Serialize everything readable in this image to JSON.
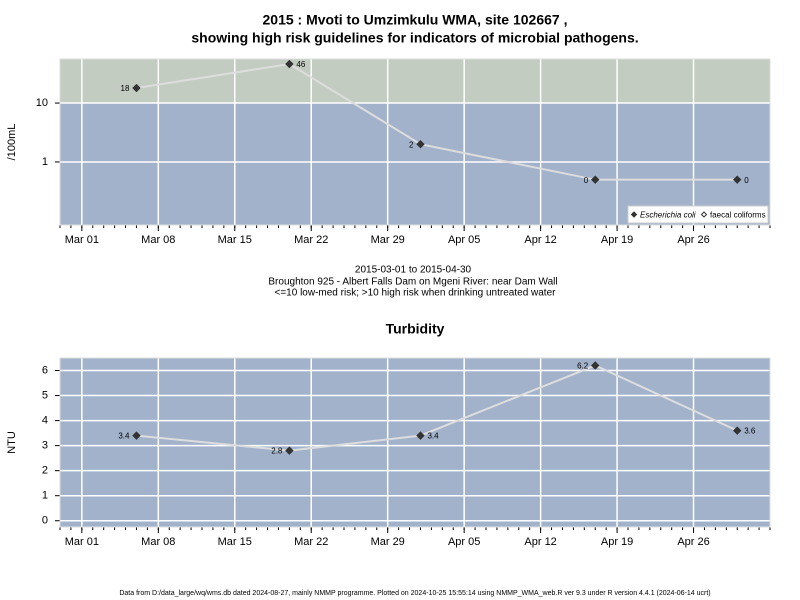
{
  "title_lines": [
    "2015 : Mvoti to Umzimkulu WMA, site 102667 ,",
    "showing high risk guidelines for indicators of microbial pathogens."
  ],
  "subtitle_lines": [
    "2015-03-01 to 2015-04-30",
    "Broughton 925 - Albert Falls Dam on Mgeni River: near Dam Wall",
    "<=10 low-med risk; >10 high risk when drinking untreated water"
  ],
  "footer": "Data from D:/data_large/wq/wms.db dated 2024-08-27, mainly NMMP programme. Plotted on 2024-10-25 15:55:14 using NMMP_WMA_web.R ver 9.3 under R version 4.4.1 (2024-06-14 ucrt)",
  "chart_data": [
    {
      "type": "line",
      "y_label": "/100mL",
      "log_y": true,
      "x": [
        "2015-03-06",
        "2015-03-20",
        "2015-04-01",
        "2015-04-17",
        "2015-04-30"
      ],
      "xlim": [
        "2015-02-27",
        "2015-05-03"
      ],
      "xticks": [
        {
          "value": "2015-03-01",
          "label": "Mar 01"
        },
        {
          "value": "2015-03-08",
          "label": "Mar 08"
        },
        {
          "value": "2015-03-15",
          "label": "Mar 15"
        },
        {
          "value": "2015-03-22",
          "label": "Mar 22"
        },
        {
          "value": "2015-03-29",
          "label": "Mar 29"
        },
        {
          "value": "2015-04-05",
          "label": "Apr 05"
        },
        {
          "value": "2015-04-12",
          "label": "Apr 12"
        },
        {
          "value": "2015-04-19",
          "label": "Apr 19"
        },
        {
          "value": "2015-04-26",
          "label": "Apr 26"
        }
      ],
      "ylim": [
        0.085,
        56
      ],
      "yticks": [
        1,
        10
      ],
      "guideline": 10,
      "band_colors": [
        "#a2b2cb",
        "#c2ccc0"
      ],
      "grid": true,
      "legend": "bottom-right",
      "series": [
        {
          "name": "Escherichia coli",
          "color": "#333333",
          "line_color": "#dddddd",
          "marker": "filled-diamond",
          "values": [
            18,
            46,
            2,
            0.5,
            0.5
          ],
          "value_labels": [
            "18",
            "46",
            "2",
            "0",
            "0"
          ]
        },
        {
          "name": "faecal coliforms",
          "color": "#333333",
          "marker": "open-diamond",
          "values": [
            null,
            null,
            null,
            null,
            null
          ]
        }
      ]
    },
    {
      "type": "line",
      "title": "Turbidity",
      "y_label": "NTU",
      "x": [
        "2015-03-06",
        "2015-03-20",
        "2015-04-01",
        "2015-04-17",
        "2015-04-30"
      ],
      "xlim": [
        "2015-02-27",
        "2015-05-03"
      ],
      "xticks": [
        {
          "value": "2015-03-01",
          "label": "Mar 01"
        },
        {
          "value": "2015-03-08",
          "label": "Mar 08"
        },
        {
          "value": "2015-03-15",
          "label": "Mar 15"
        },
        {
          "value": "2015-03-22",
          "label": "Mar 22"
        },
        {
          "value": "2015-03-29",
          "label": "Mar 29"
        },
        {
          "value": "2015-04-05",
          "label": "Apr 05"
        },
        {
          "value": "2015-04-12",
          "label": "Apr 12"
        },
        {
          "value": "2015-04-19",
          "label": "Apr 19"
        },
        {
          "value": "2015-04-26",
          "label": "Apr 26"
        }
      ],
      "ylim": [
        -0.25,
        6.5
      ],
      "yticks": [
        0,
        1,
        2,
        3,
        4,
        5,
        6
      ],
      "band_colors": [
        "#a2b2cb"
      ],
      "grid": true,
      "series": [
        {
          "color": "#333333",
          "line_color": "#dddddd",
          "marker": "filled-diamond",
          "values": [
            3.4,
            2.8,
            3.4,
            6.2,
            3.6
          ]
        }
      ]
    }
  ]
}
